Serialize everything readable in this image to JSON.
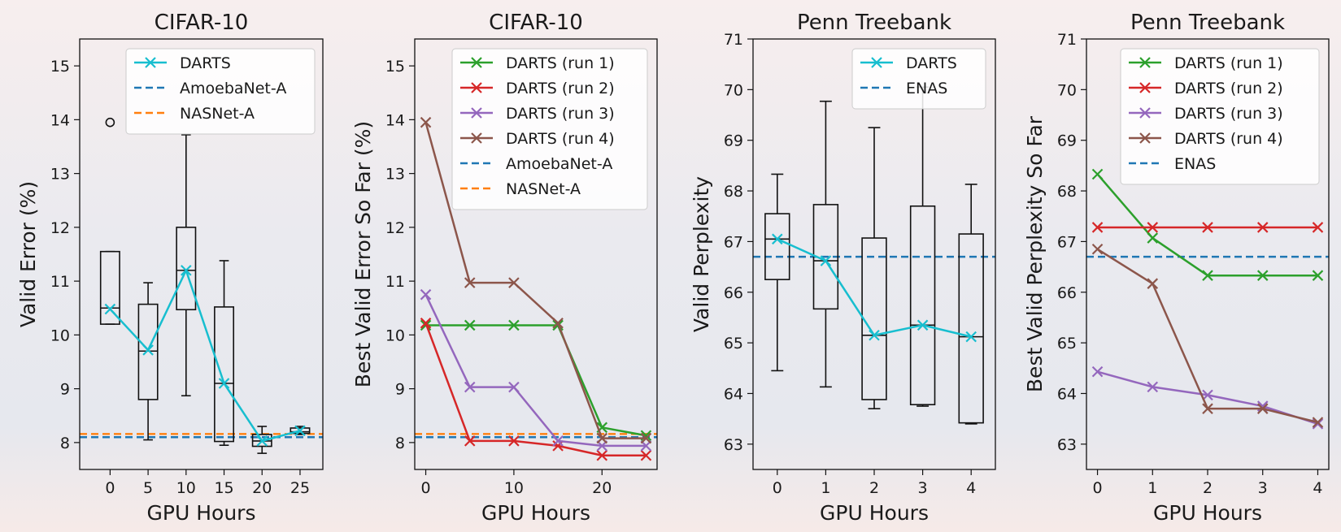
{
  "colors": {
    "darts": "#17becf",
    "run1": "#2ca02c",
    "run2": "#d62728",
    "run3": "#9467bd",
    "run4": "#8c564b",
    "blue_dashed": "#1f77b4",
    "orange_dashed": "#ff7f0e",
    "box": "#111111"
  },
  "chart_data": [
    {
      "type": "box",
      "title": "CIFAR-10",
      "xlabel": "GPU Hours",
      "ylabel": "Valid Error (%)",
      "xlim": [
        -4,
        28
      ],
      "ylim": [
        7.5,
        15.5
      ],
      "xticks": [
        0,
        5,
        10,
        15,
        20,
        25
      ],
      "yticks": [
        8,
        9,
        10,
        11,
        12,
        13,
        14,
        15
      ],
      "legend_position": "top-right",
      "boxes": [
        {
          "x": 0,
          "whislo": 10.2,
          "q1": 10.2,
          "med": 10.5,
          "q3": 11.55,
          "whishi": 11.55,
          "fliers": [
            13.95
          ]
        },
        {
          "x": 5,
          "whislo": 8.05,
          "q1": 8.8,
          "med": 9.7,
          "q3": 10.57,
          "whishi": 10.97,
          "fliers": []
        },
        {
          "x": 10,
          "whislo": 8.87,
          "q1": 10.47,
          "med": 11.2,
          "q3": 12.0,
          "whishi": 13.72,
          "fliers": []
        },
        {
          "x": 15,
          "whislo": 7.95,
          "q1": 8.02,
          "med": 9.1,
          "q3": 10.52,
          "whishi": 11.38,
          "fliers": []
        },
        {
          "x": 20,
          "whislo": 7.8,
          "q1": 7.93,
          "med": 8.03,
          "q3": 8.15,
          "whishi": 8.3,
          "fliers": []
        },
        {
          "x": 25,
          "whislo": 8.15,
          "q1": 8.17,
          "med": 8.2,
          "q3": 8.27,
          "whishi": 8.3,
          "fliers": []
        }
      ],
      "series": [
        {
          "name": "DARTS",
          "color_key": "darts",
          "style": "line-x",
          "x": [
            0,
            5,
            10,
            15,
            20,
            25
          ],
          "values": [
            10.48,
            9.72,
            11.2,
            9.1,
            8.03,
            8.22
          ]
        }
      ],
      "hlines": [
        {
          "name": "AmoebaNet-A",
          "color_key": "blue_dashed",
          "y": 8.1
        },
        {
          "name": "NASNet-A",
          "color_key": "orange_dashed",
          "y": 8.16
        }
      ]
    },
    {
      "type": "line",
      "title": "CIFAR-10",
      "xlabel": "GPU Hours",
      "ylabel": "Best Valid Error So Far (%)",
      "xlim": [
        -1.25,
        26.25
      ],
      "ylim": [
        7.5,
        15.5
      ],
      "xticks": [
        0,
        10,
        20
      ],
      "yticks": [
        8,
        9,
        10,
        11,
        12,
        13,
        14,
        15
      ],
      "legend_position": "top-right",
      "series": [
        {
          "name": "DARTS (run 1)",
          "color_key": "run1",
          "style": "line-x",
          "x": [
            0,
            5,
            10,
            15,
            20,
            25
          ],
          "values": [
            10.18,
            10.18,
            10.18,
            10.18,
            8.28,
            8.13
          ]
        },
        {
          "name": "DARTS (run 2)",
          "color_key": "run2",
          "style": "line-x",
          "x": [
            0,
            5,
            10,
            15,
            20,
            25
          ],
          "values": [
            10.22,
            8.03,
            8.03,
            7.94,
            7.76,
            7.76
          ]
        },
        {
          "name": "DARTS (run 3)",
          "color_key": "run3",
          "style": "line-x",
          "x": [
            0,
            5,
            10,
            15,
            20,
            25
          ],
          "values": [
            10.75,
            9.03,
            9.03,
            8.03,
            7.94,
            7.94
          ]
        },
        {
          "name": "DARTS (run 4)",
          "color_key": "run4",
          "style": "line-x",
          "x": [
            0,
            5,
            10,
            15,
            20,
            25
          ],
          "values": [
            13.95,
            10.97,
            10.97,
            10.22,
            8.08,
            8.08
          ]
        }
      ],
      "hlines": [
        {
          "name": "AmoebaNet-A",
          "color_key": "blue_dashed",
          "y": 8.1
        },
        {
          "name": "NASNet-A",
          "color_key": "orange_dashed",
          "y": 8.16
        }
      ]
    },
    {
      "type": "box",
      "title": "Penn Treebank",
      "xlabel": "GPU Hours",
      "ylabel": "Valid Perplexity",
      "xlim": [
        -0.5,
        4.5
      ],
      "ylim": [
        62.5,
        71.0
      ],
      "xticks": [
        0,
        1,
        2,
        3,
        4
      ],
      "yticks": [
        63,
        64,
        65,
        66,
        67,
        68,
        69,
        70,
        71
      ],
      "legend_position": "top-right",
      "boxes": [
        {
          "x": 0,
          "whislo": 64.45,
          "q1": 66.25,
          "med": 67.05,
          "q3": 67.55,
          "whishi": 68.33,
          "fliers": []
        },
        {
          "x": 1,
          "whislo": 64.13,
          "q1": 65.67,
          "med": 66.62,
          "q3": 67.73,
          "whishi": 69.77,
          "fliers": []
        },
        {
          "x": 2,
          "whislo": 63.7,
          "q1": 63.88,
          "med": 65.15,
          "q3": 67.07,
          "whishi": 69.25,
          "fliers": []
        },
        {
          "x": 3,
          "whislo": 63.75,
          "q1": 63.78,
          "med": 65.35,
          "q3": 67.7,
          "whishi": 70.05,
          "fliers": []
        },
        {
          "x": 4,
          "whislo": 63.4,
          "q1": 63.42,
          "med": 65.12,
          "q3": 67.15,
          "whishi": 68.13,
          "fliers": []
        }
      ],
      "series": [
        {
          "name": "DARTS",
          "color_key": "darts",
          "style": "line-x",
          "x": [
            0,
            1,
            2,
            3,
            4
          ],
          "values": [
            67.05,
            66.62,
            65.15,
            65.35,
            65.12
          ]
        }
      ],
      "hlines": [
        {
          "name": "ENAS",
          "color_key": "blue_dashed",
          "y": 66.7
        }
      ]
    },
    {
      "type": "line",
      "title": "Penn Treebank",
      "xlabel": "GPU Hours",
      "ylabel": "Best Valid Perplexity So Far",
      "xlim": [
        -0.2,
        4.2
      ],
      "ylim": [
        62.5,
        71.0
      ],
      "xticks": [
        0,
        1,
        2,
        3,
        4
      ],
      "yticks": [
        63,
        64,
        65,
        66,
        67,
        68,
        69,
        70,
        71
      ],
      "legend_position": "top-right",
      "series": [
        {
          "name": "DARTS (run 1)",
          "color_key": "run1",
          "style": "line-x",
          "x": [
            0,
            1,
            2,
            3,
            4
          ],
          "values": [
            68.33,
            67.07,
            66.33,
            66.33,
            66.33
          ]
        },
        {
          "name": "DARTS (run 2)",
          "color_key": "run2",
          "style": "line-x",
          "x": [
            0,
            1,
            2,
            3,
            4
          ],
          "values": [
            67.28,
            67.28,
            67.28,
            67.28,
            67.28
          ]
        },
        {
          "name": "DARTS (run 3)",
          "color_key": "run3",
          "style": "line-x",
          "x": [
            0,
            1,
            2,
            3,
            4
          ],
          "values": [
            64.43,
            64.13,
            63.97,
            63.75,
            63.4
          ]
        },
        {
          "name": "DARTS (run 4)",
          "color_key": "run4",
          "style": "line-x",
          "x": [
            0,
            1,
            2,
            3,
            4
          ],
          "values": [
            66.85,
            66.17,
            63.7,
            63.7,
            63.43
          ]
        }
      ],
      "hlines": [
        {
          "name": "ENAS",
          "color_key": "blue_dashed",
          "y": 66.7
        }
      ]
    }
  ]
}
